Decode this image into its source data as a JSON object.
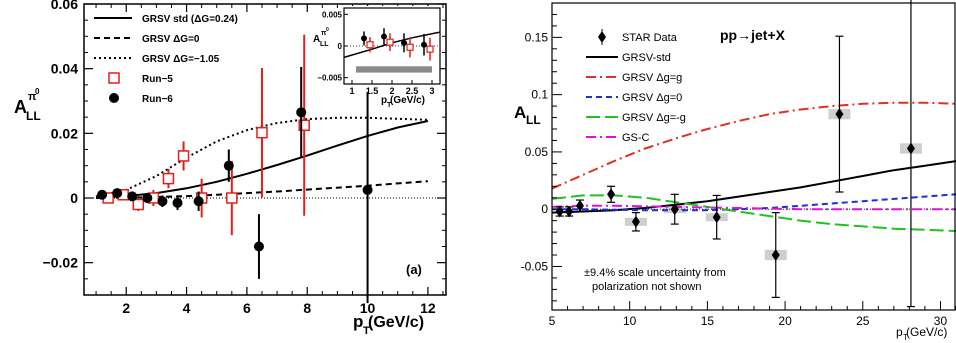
{
  "chart_data": [
    {
      "type": "scatter",
      "panel_label": "(a)",
      "ylabel_base": "A",
      "ylabel_sub": "LL",
      "ylabel_sup": "π",
      "ylabel_sup_zero": "0",
      "xlabel_base": "p",
      "xlabel_sub": "T",
      "xlabel_unit": " (GeV/c)",
      "xlim": [
        0.6,
        12.6
      ],
      "ylim": [
        -0.03,
        0.06
      ],
      "xticks": [
        2,
        4,
        6,
        8,
        10,
        12
      ],
      "yticks": [
        -0.02,
        0,
        0.02,
        0.04,
        0.06
      ],
      "ytick_labels": [
        "−0.02",
        "0",
        "0.02",
        "0.04",
        "0.06"
      ],
      "legend": [
        {
          "label": "GRSV std (ΔG=0.24)",
          "style": "solid"
        },
        {
          "label": "GRSV  ΔG=0",
          "style": "dashed"
        },
        {
          "label": "GRSV  ΔG=−1.05",
          "style": "dotted"
        },
        {
          "label": "Run−5",
          "style": "open-square-red"
        },
        {
          "label": "Run−6",
          "style": "filled-circle-black"
        }
      ],
      "curves": [
        {
          "style": "solid",
          "x": [
            1,
            2,
            3,
            4,
            5,
            6,
            7,
            8,
            9,
            10,
            11,
            12
          ],
          "y": [
            0.0002,
            0.0006,
            0.0015,
            0.003,
            0.005,
            0.0075,
            0.0102,
            0.0131,
            0.0162,
            0.0192,
            0.0218,
            0.0238
          ]
        },
        {
          "style": "dashed",
          "x": [
            1,
            2,
            3,
            4,
            5,
            6,
            7,
            8,
            9,
            10,
            11,
            12
          ],
          "y": [
            0.0,
            0.0001,
            0.0003,
            0.0006,
            0.001,
            0.0015,
            0.002,
            0.0026,
            0.0032,
            0.0038,
            0.0045,
            0.0052
          ]
        },
        {
          "style": "dotted",
          "x": [
            1,
            2,
            3,
            4,
            5,
            6,
            7,
            8,
            9,
            10,
            11,
            12
          ],
          "y": [
            0.0005,
            0.0025,
            0.0068,
            0.0125,
            0.0175,
            0.021,
            0.0232,
            0.0244,
            0.0248,
            0.0248,
            0.0245,
            0.0242
          ]
        }
      ],
      "series": [
        {
          "marker": "square",
          "color": "#e0201c",
          "x": [
            1.4,
            1.9,
            2.4,
            2.9,
            3.4,
            3.9,
            4.5,
            5.5,
            6.5,
            7.9
          ],
          "y": [
            0.0,
            0.001,
            -0.002,
            0.0,
            0.006,
            0.013,
            0.0,
            0.0,
            0.0202,
            0.0225
          ],
          "err": [
            0.0015,
            0.0017,
            0.002,
            0.0025,
            0.003,
            0.0045,
            0.006,
            0.0115,
            0.02,
            0.028
          ]
        },
        {
          "marker": "circle",
          "color": "#000000",
          "x": [
            1.2,
            1.7,
            2.2,
            2.7,
            3.2,
            3.7,
            4.4,
            5.4,
            6.4,
            7.8,
            10.0
          ],
          "y": [
            0.001,
            0.0015,
            0.0005,
            0.0,
            -0.001,
            -0.0015,
            -0.001,
            0.01,
            -0.015,
            0.0265,
            0.0025
          ],
          "err": [
            0.001,
            0.001,
            0.0012,
            0.0015,
            0.0018,
            0.0022,
            0.003,
            0.005,
            0.01,
            0.014,
            0.035
          ]
        }
      ],
      "inset": {
        "ylabel_base": "A",
        "ylabel_sub": "LL",
        "ylabel_sup": "π",
        "ylabel_sup_zero": "0",
        "xlabel_base": "p",
        "xlabel_sub": "T",
        "xlabel_unit": " (GeV/c)",
        "xlim": [
          0.8,
          3.2
        ],
        "ylim": [
          -0.006,
          0.006
        ],
        "xticks": [
          1,
          1.5,
          2,
          2.5,
          3
        ],
        "xtick_labels": [
          "1",
          "1.5",
          "2",
          "2.5",
          "3"
        ],
        "yticks": [
          -0.005,
          0,
          0.005
        ],
        "ytick_labels": [
          "−0.005",
          "0",
          "0.005"
        ],
        "band": {
          "y": [
            -0.0042,
            -0.0032
          ],
          "x": [
            1.1,
            3.0
          ]
        },
        "curve": {
          "x": [
            0.8,
            1.5,
            2.0,
            2.5,
            3.2
          ],
          "y": [
            -0.0018,
            -0.0005,
            0.0005,
            0.0013,
            0.0022
          ]
        },
        "series": [
          {
            "marker": "square",
            "color": "#e0201c",
            "x": [
              1.45,
              1.95,
              2.45,
              2.95
            ],
            "y": [
              0.0002,
              0.0006,
              -0.0002,
              -0.0005
            ],
            "err": [
              0.0012,
              0.0014,
              0.0016,
              0.0018
            ]
          },
          {
            "marker": "circle",
            "color": "#000000",
            "x": [
              1.3,
              1.8,
              2.3,
              2.8
            ],
            "y": [
              0.0012,
              0.0015,
              0.0005,
              0.0002
            ],
            "err": [
              0.0011,
              0.0013,
              0.0015,
              0.0017
            ]
          }
        ]
      }
    },
    {
      "type": "scatter",
      "title": "pp→jet+X",
      "ylabel_base": "A",
      "ylabel_sub": "LL",
      "xlabel_base": "p",
      "xlabel_sub": "T",
      "xlabel_unit": " (GeV/c)",
      "xlim": [
        5,
        31
      ],
      "ylim": [
        -0.088,
        0.18
      ],
      "xticks": [
        5,
        10,
        15,
        20,
        25,
        30
      ],
      "yticks": [
        -0.05,
        0,
        0.05,
        0.1,
        0.15
      ],
      "ytick_labels": [
        "-0.05",
        "0",
        "0.05",
        "0.1",
        "0.15"
      ],
      "note_lines": [
        "±9.4% scale uncertainty from",
        "polarization not shown"
      ],
      "legend": [
        {
          "label": "STAR Data",
          "style": "diamond",
          "color": "#000000"
        },
        {
          "label": "GRSV-std",
          "style": "solid",
          "color": "#000000"
        },
        {
          "label": "GRSV  Δg=g",
          "style": "dashdot",
          "color": "#e03020"
        },
        {
          "label": "GRSV  Δg=0",
          "style": "dashed",
          "color": "#1c2ee0"
        },
        {
          "label": "GRSV  Δg=-g",
          "style": "longdash",
          "color": "#21c21e"
        },
        {
          "label": "GS-C",
          "style": "dashdot",
          "color": "#e010e0"
        }
      ],
      "curves": [
        {
          "style": "solid",
          "color": "#000000",
          "x": [
            5,
            7,
            9,
            11,
            13,
            15,
            17,
            19,
            21,
            23,
            25,
            27,
            29,
            31
          ],
          "y": [
            -0.003,
            -0.002,
            -0.001,
            0.001,
            0.004,
            0.007,
            0.011,
            0.015,
            0.019,
            0.024,
            0.029,
            0.034,
            0.038,
            0.042
          ]
        },
        {
          "style": "dashdot",
          "color": "#e03020",
          "x": [
            5,
            7,
            9,
            11,
            13,
            15,
            17,
            19,
            21,
            23,
            25,
            27,
            29,
            31
          ],
          "y": [
            0.018,
            0.03,
            0.042,
            0.053,
            0.062,
            0.07,
            0.077,
            0.083,
            0.087,
            0.09,
            0.092,
            0.093,
            0.093,
            0.092
          ]
        },
        {
          "style": "dashed",
          "color": "#1c2ee0",
          "x": [
            5,
            7,
            9,
            11,
            13,
            15,
            17,
            19,
            21,
            23,
            25,
            27,
            29,
            31
          ],
          "y": [
            0.0,
            0.0,
            -0.0005,
            -0.001,
            -0.001,
            -0.001,
            0.0,
            0.001,
            0.003,
            0.005,
            0.007,
            0.009,
            0.011,
            0.013
          ]
        },
        {
          "style": "longdash",
          "color": "#21c21e",
          "x": [
            5,
            7,
            9,
            11,
            13,
            15,
            17,
            19,
            21,
            23,
            25,
            27,
            29,
            31
          ],
          "y": [
            0.009,
            0.012,
            0.012,
            0.01,
            0.006,
            0.002,
            -0.002,
            -0.006,
            -0.01,
            -0.013,
            -0.015,
            -0.017,
            -0.018,
            -0.019
          ]
        },
        {
          "style": "dashdot",
          "color": "#e010e0",
          "x": [
            5,
            7,
            9,
            11,
            13,
            15,
            17,
            19,
            21,
            23,
            25,
            27,
            29,
            31
          ],
          "y": [
            0.002,
            0.003,
            0.003,
            0.0025,
            0.002,
            0.0015,
            0.001,
            0.0005,
            0.0,
            0.0,
            0.0,
            0.0,
            0.0,
            0.0
          ]
        }
      ],
      "series": [
        {
          "name": "STAR Data",
          "marker": "diamond",
          "color": "#000000",
          "x": [
            5.5,
            6.1,
            6.8,
            8.8,
            10.4,
            12.9,
            15.6,
            19.4,
            23.5,
            28.1
          ],
          "y": [
            -0.002,
            -0.002,
            0.003,
            0.013,
            -0.011,
            0.0,
            -0.007,
            -0.04,
            0.083,
            0.053
          ],
          "err": [
            0.004,
            0.004,
            0.005,
            0.007,
            0.008,
            0.013,
            0.019,
            0.037,
            0.068,
            0.138
          ],
          "sys_band": [
            0.0,
            0.0,
            0.0,
            0.0,
            0.0035,
            0.0035,
            0.0035,
            0.0045,
            0.0045,
            0.0045
          ]
        }
      ]
    }
  ]
}
